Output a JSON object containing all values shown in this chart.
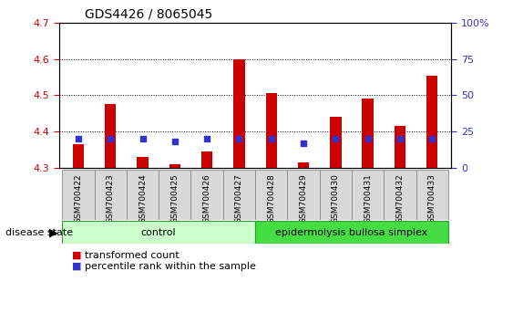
{
  "title": "GDS4426 / 8065045",
  "samples": [
    "GSM700422",
    "GSM700423",
    "GSM700424",
    "GSM700425",
    "GSM700426",
    "GSM700427",
    "GSM700428",
    "GSM700429",
    "GSM700430",
    "GSM700431",
    "GSM700432",
    "GSM700433"
  ],
  "transformed_count": [
    4.365,
    4.475,
    4.33,
    4.31,
    4.345,
    4.6,
    4.505,
    4.315,
    4.44,
    4.49,
    4.415,
    4.555
  ],
  "percentile_rank": [
    20,
    20,
    20,
    18,
    20,
    20,
    20,
    17,
    20,
    20,
    20,
    20
  ],
  "ylim_left": [
    4.3,
    4.7
  ],
  "ylim_right": [
    0,
    100
  ],
  "yticks_left": [
    4.3,
    4.4,
    4.5,
    4.6,
    4.7
  ],
  "yticks_right": [
    0,
    25,
    50,
    75,
    100
  ],
  "bar_color": "#cc0000",
  "marker_color": "#3333cc",
  "bar_base": 4.3,
  "bar_width": 0.35,
  "groups": [
    {
      "label": "control",
      "start": 0,
      "end": 5,
      "color": "#ccffcc",
      "border_color": "#339933"
    },
    {
      "label": "epidermolysis bullosa simplex",
      "start": 6,
      "end": 11,
      "color": "#44dd44",
      "border_color": "#339933"
    }
  ],
  "group_label_prefix": "disease state",
  "background_color": "#ffffff",
  "plot_bg_color": "#ffffff",
  "tick_label_color_left": "#cc0000",
  "tick_label_color_right": "#3333cc",
  "xtick_bg_color": "#d8d8d8",
  "xtick_border_color": "#888888"
}
